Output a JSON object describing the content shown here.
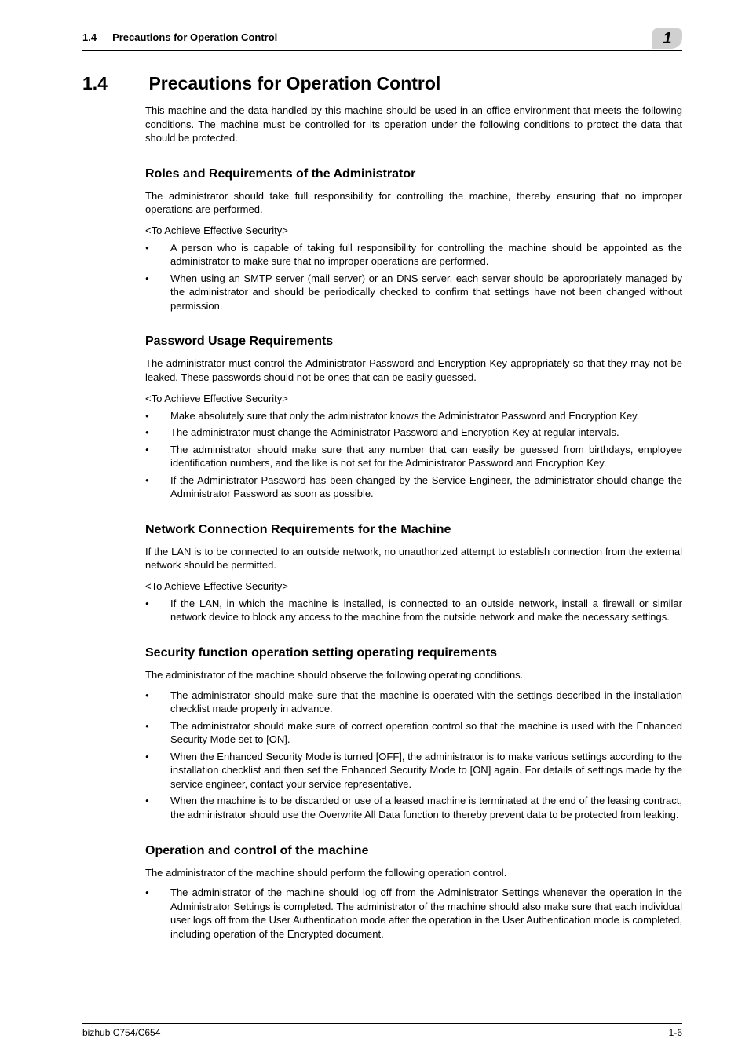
{
  "header": {
    "section_number_small": "1.4",
    "section_title_small": "Precautions for Operation Control",
    "chapter_number": "1"
  },
  "main_heading": {
    "number": "1.4",
    "title": "Precautions for Operation Control"
  },
  "intro": "This machine and the data handled by this machine should be used in an office environment that meets the following conditions. The machine must be controlled for its operation under the following conditions to protect the data that should be protected.",
  "sections": {
    "roles": {
      "heading": "Roles and Requirements of the Administrator",
      "para": "The administrator should take full responsibility for controlling the machine, thereby ensuring that no improper operations are performed.",
      "tag": "<To Achieve Effective Security>",
      "bullets": [
        "A person who is capable of taking full responsibility for controlling the machine should be appointed as the administrator to make sure that no improper operations are performed.",
        "When using an SMTP server (mail server) or an DNS server, each server should be appropriately managed by the administrator and should be periodically checked to confirm that settings have not been changed without permission."
      ]
    },
    "password": {
      "heading": "Password Usage Requirements",
      "para": "The administrator must control the Administrator Password and Encryption Key appropriately so that they may not be leaked. These passwords should not be ones that can be easily guessed.",
      "tag": "<To Achieve Effective Security>",
      "bullets": [
        "Make absolutely sure that only the administrator knows the Administrator Password and Encryption Key.",
        "The administrator must change the Administrator Password and Encryption Key at regular intervals.",
        "The administrator should make sure that any number that can easily be guessed from birthdays, employee identification numbers, and the like is not set for the Administrator Password and Encryption Key.",
        "If the Administrator Password has been changed by the Service Engineer, the administrator should change the Administrator Password as soon as possible."
      ]
    },
    "network": {
      "heading": "Network Connection Requirements for the Machine",
      "para": "If the LAN is to be connected to an outside network, no unauthorized attempt to establish connection from the external network should be permitted.",
      "tag": "<To Achieve Effective Security>",
      "bullets": [
        "If the LAN, in which the machine is installed, is connected to an outside network, install a firewall or similar network device to block any access to the machine from the outside network and make the necessary settings."
      ]
    },
    "security_func": {
      "heading": "Security function operation setting operating requirements",
      "para": "The administrator of the machine should observe the following operating conditions.",
      "bullets": [
        "The administrator should make sure that the machine is operated with the settings described in the installation checklist made properly in advance.",
        "The administrator should make sure of correct operation control so that the machine is used with the Enhanced Security Mode set to [ON].",
        "When the Enhanced Security Mode is turned [OFF], the administrator is to make various settings according to the installation checklist and then set the Enhanced Security Mode to [ON] again. For details of settings made by the service engineer, contact your service representative.",
        "When the machine is to be discarded or use of a leased machine is terminated at the end of the leasing contract, the administrator should use the Overwrite All Data function to thereby prevent data to be protected from leaking."
      ]
    },
    "operation": {
      "heading": "Operation and control of the machine",
      "para": "The administrator of the machine should perform the following operation control.",
      "bullets": [
        "The administrator of the machine should log off from the Administrator Settings whenever the operation in the Administrator Settings is completed. The administrator of the machine should also make sure that each individual user logs off from the User Authentication mode after the operation in the User Authentication mode is completed, including operation of the Encrypted document."
      ]
    }
  },
  "footer": {
    "left": "bizhub C754/C654",
    "right": "1-6"
  }
}
